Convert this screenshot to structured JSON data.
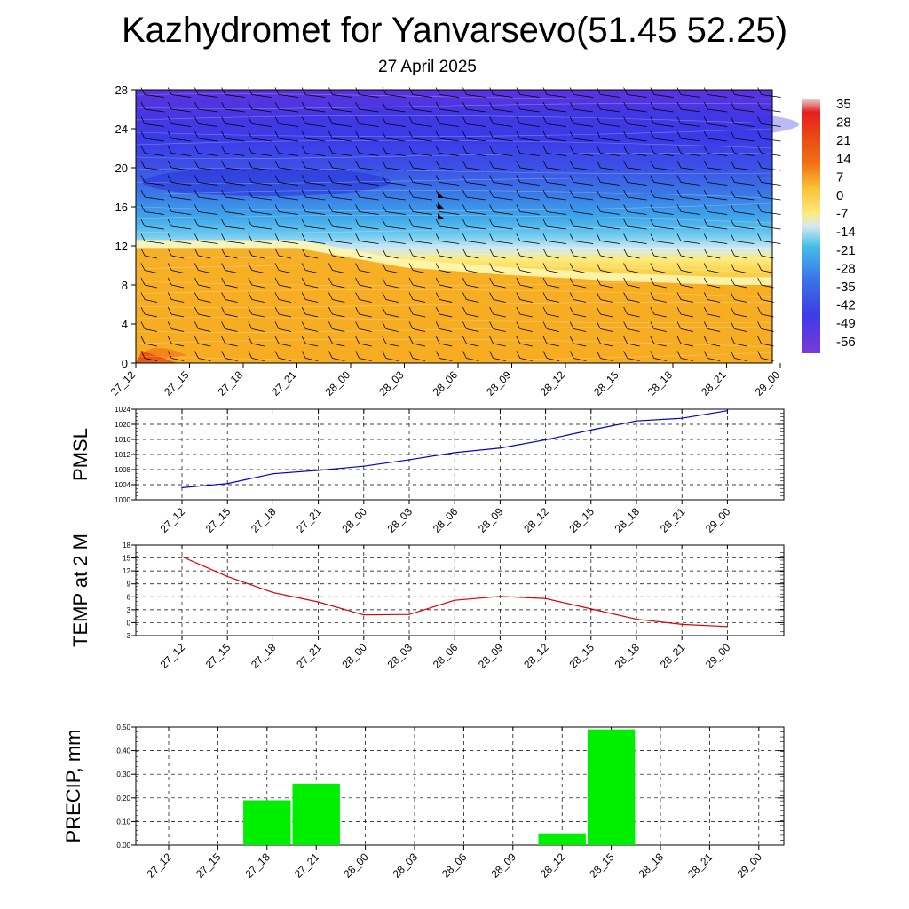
{
  "header": {
    "title": "Kazhydromet for Yanvarsevo(51.45 52.25)",
    "date": "27 April 2025"
  },
  "chart_data": [
    {
      "type": "heatmap",
      "title": "",
      "x_categories": [
        "27_12",
        "27_15",
        "27_18",
        "27_21",
        "28_00",
        "28_03",
        "28_06",
        "28_09",
        "28_12",
        "28_15",
        "28_18",
        "28_21",
        "29_00"
      ],
      "y_ticks": [
        0,
        4,
        8,
        12,
        16,
        20,
        24,
        28
      ],
      "ylim": [
        0,
        28
      ],
      "colorbar": {
        "labels": [
          "35",
          "28",
          "21",
          "14",
          "7",
          "0",
          "-7",
          "-14",
          "-21",
          "-28",
          "-35",
          "-42",
          "-49",
          "-56"
        ],
        "colors": [
          "#e2c9c9",
          "#e81d1d",
          "#ea4a14",
          "#f07014",
          "#f5a21a",
          "#fac235",
          "#fdeb7d",
          "#d6e9f0",
          "#44bde9",
          "#3e92e6",
          "#3a5fe6",
          "#3c3be8",
          "#5029e0",
          "#7a3ad8"
        ]
      },
      "freezing_level_km": [
        11.8,
        11.8,
        11.8,
        11.8,
        10.8,
        9.8,
        9.4,
        9.0,
        8.7,
        8.4,
        8.2,
        8.0,
        8.0
      ],
      "wind_barbs": "present"
    },
    {
      "type": "line",
      "ylabel": "PMSL",
      "x": [
        "27_12",
        "27_15",
        "27_18",
        "27_21",
        "28_00",
        "28_03",
        "28_06",
        "28_09",
        "28_12",
        "28_15",
        "28_18",
        "28_21",
        "29_00"
      ],
      "y_ticks": [
        1000,
        1004,
        1008,
        1012,
        1016,
        1020,
        1024
      ],
      "ylim": [
        1000,
        1024
      ],
      "series": [
        {
          "values": [
            1003.2,
            1004.3,
            1006.9,
            1007.8,
            1008.9,
            1010.6,
            1012.5,
            1013.7,
            1015.9,
            1018.5,
            1020.9,
            1021.6,
            1023.6
          ],
          "color": "#0000cc"
        }
      ]
    },
    {
      "type": "line",
      "ylabel": "TEMP at 2 M",
      "x": [
        "27_12",
        "27_15",
        "27_18",
        "27_21",
        "28_00",
        "28_03",
        "28_06",
        "28_09",
        "28_12",
        "28_15",
        "28_18",
        "28_21",
        "29_00"
      ],
      "y_ticks": [
        -3,
        0,
        3,
        6,
        9,
        12,
        15,
        18
      ],
      "ylim": [
        -3,
        18
      ],
      "series": [
        {
          "values": [
            15.3,
            10.7,
            7.0,
            4.8,
            1.8,
            1.9,
            5.2,
            6.1,
            5.6,
            3.2,
            0.8,
            -0.4,
            -0.9
          ],
          "color": "#dd0000"
        }
      ]
    },
    {
      "type": "bar",
      "ylabel": "PRECIP, mm",
      "categories": [
        "27_12",
        "27_15",
        "27_18",
        "27_21",
        "28_00",
        "28_03",
        "28_06",
        "28_09",
        "28_12",
        "28_15",
        "28_18",
        "28_21",
        "29_00"
      ],
      "y_ticks": [
        "0.00",
        "0.10",
        "0.20",
        "0.30",
        "0.40",
        "0.50"
      ],
      "ylim": [
        0,
        0.5
      ],
      "values": [
        0,
        0,
        0.19,
        0.26,
        0,
        0,
        0,
        0,
        0.05,
        0.49,
        0,
        0,
        0
      ],
      "color": "#00ee00"
    }
  ]
}
